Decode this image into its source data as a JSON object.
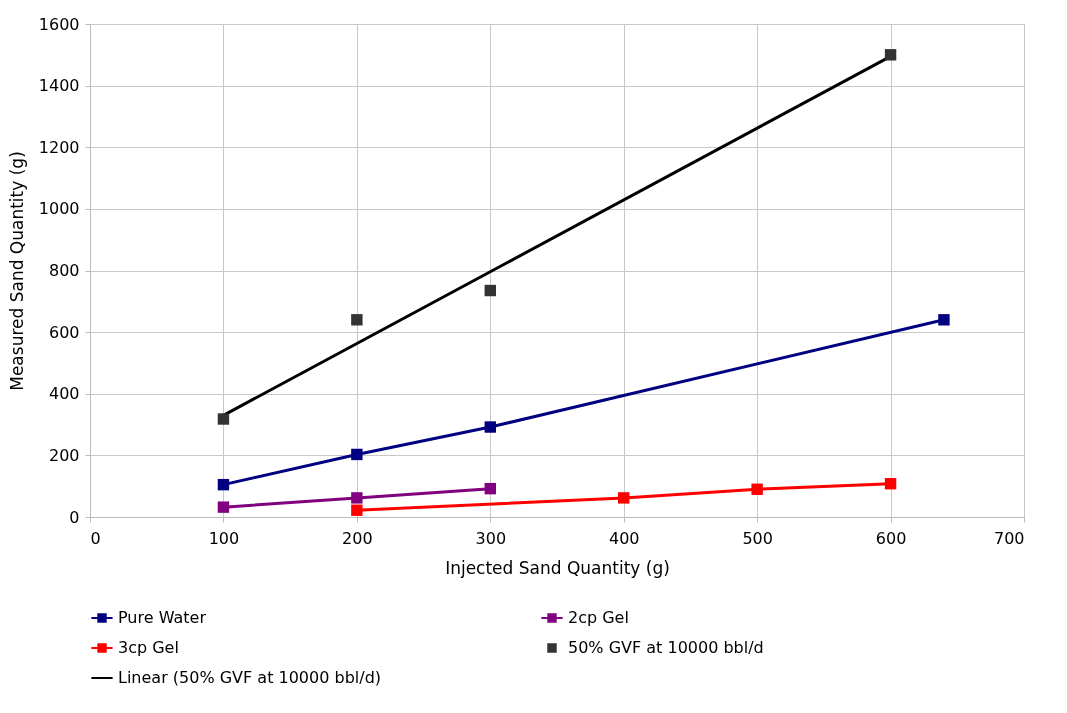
{
  "chart_data": {
    "type": "line",
    "xlabel": "Injected Sand Quantity (g)",
    "ylabel": "Measured Sand Quantity (g)",
    "xlim": [
      0,
      700
    ],
    "xticks": [
      0,
      100,
      200,
      300,
      400,
      500,
      600,
      700
    ],
    "ylim": [
      0,
      1600
    ],
    "yticks": [
      0,
      200,
      400,
      600,
      800,
      1000,
      1200,
      1400,
      1600
    ],
    "grid": true,
    "legend": "bottom",
    "marker": "square",
    "line_style": "solid",
    "series": [
      {
        "name": "Pure Water",
        "color": "#000080",
        "x": [
          100,
          200,
          300,
          640
        ],
        "values": [
          105,
          203,
          292,
          640
        ]
      },
      {
        "name": "2cp Gel",
        "color": "#800080",
        "x": [
          100,
          200,
          300
        ],
        "values": [
          32,
          62,
          92
        ]
      },
      {
        "name": "3cp Gel",
        "color": "#ff0000",
        "x": [
          200,
          400,
          500,
          600
        ],
        "values": [
          22,
          62,
          90,
          108
        ]
      },
      {
        "name": "50% GVF at 10000 bbl/d",
        "type": "scatter",
        "color": "#333333",
        "x": [
          100,
          200,
          300,
          600
        ],
        "values": [
          318,
          640,
          735,
          1500
        ]
      },
      {
        "name": "Linear (50% GVF at 10000 bbl/d)",
        "type": "line",
        "marker": "none",
        "color": "#000000",
        "x": [
          100,
          600
        ],
        "values": [
          330,
          1495
        ]
      }
    ]
  }
}
